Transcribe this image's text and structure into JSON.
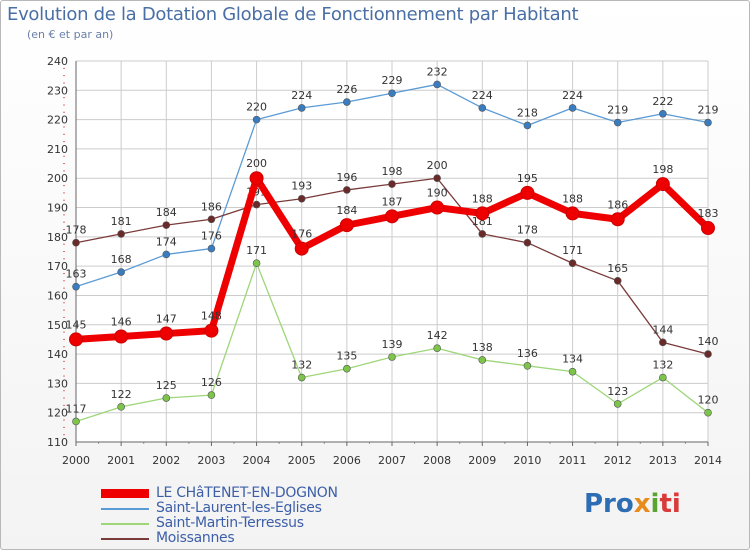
{
  "title": "Evolution de la Dotation Globale de Fonctionnement par Habitant",
  "subtitle": "(en € et par an)",
  "logo": {
    "text": "Proxiti",
    "parts": [
      "Pro",
      "x",
      "i",
      "ti"
    ]
  },
  "chart_data": {
    "type": "line",
    "title": "Evolution de la Dotation Globale de Fonctionnement par Habitant",
    "subtitle": "(en € et par an)",
    "xlabel": "",
    "ylabel": "",
    "ylim": [
      110,
      240
    ],
    "yticks": [
      110,
      120,
      130,
      140,
      150,
      160,
      170,
      180,
      190,
      200,
      210,
      220,
      230,
      240
    ],
    "x": [
      "2000",
      "2001",
      "2002",
      "2003",
      "2004",
      "2005",
      "2006",
      "2007",
      "2008",
      "2009",
      "2010",
      "2011",
      "2012",
      "2013",
      "2014"
    ],
    "grid": true,
    "legend_position": "bottom-left",
    "series": [
      {
        "name": "Saint-Laurent-les-Eglises",
        "color": "#5b9bd5",
        "point_color": "#3a7cc0",
        "values": [
          163,
          168,
          174,
          176,
          220,
          224,
          226,
          229,
          232,
          224,
          218,
          224,
          219,
          222,
          219
        ]
      },
      {
        "name": "Saint-Martin-Terressus",
        "color": "#9fd67a",
        "point_color": "#7cc44a",
        "values": [
          117,
          122,
          125,
          126,
          171,
          132,
          135,
          139,
          142,
          138,
          136,
          134,
          123,
          132,
          120
        ]
      },
      {
        "name": "Moissannes",
        "color": "#7a3a3a",
        "point_color": "#6b2a2a",
        "values": [
          178,
          181,
          184,
          186,
          191,
          193,
          196,
          198,
          200,
          181,
          178,
          171,
          165,
          144,
          140
        ]
      },
      {
        "name": "LE CHâTENET-EN-DOGNON",
        "color": "#ee0000",
        "point_color": "#ee0000",
        "bold": true,
        "values": [
          145,
          146,
          147,
          148,
          200,
          176,
          184,
          187,
          190,
          188,
          195,
          188,
          186,
          198,
          183
        ]
      }
    ],
    "legend": [
      {
        "name": "LE CHâTENET-EN-DOGNON",
        "color": "#ee0000",
        "bold": true
      },
      {
        "name": "Saint-Laurent-les-Eglises",
        "color": "#5b9bd5"
      },
      {
        "name": "Saint-Martin-Terressus",
        "color": "#9fd67a"
      },
      {
        "name": "Moissannes",
        "color": "#7a3a3a"
      }
    ]
  }
}
